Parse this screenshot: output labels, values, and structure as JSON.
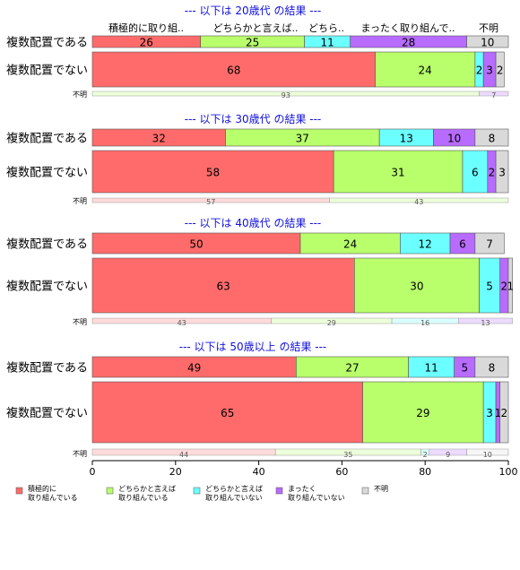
{
  "chart_data": {
    "type": "bar",
    "orientation": "horizontal-stacked-100",
    "xlim": [
      0,
      100
    ],
    "xticks": [
      "0",
      "20",
      "40",
      "60",
      "80",
      "100"
    ],
    "grid": false,
    "legend_position": "bottom-left",
    "colors": [
      "#FF6B6B",
      "#B8FF6B",
      "#6BFFFF",
      "#B86BFF",
      "#D9D9D9"
    ],
    "header_labels": [
      "積極的に取り組..",
      "どちらかと言えば..",
      "どちら..",
      "まったく取り組んで..",
      "不明"
    ],
    "legend": [
      {
        "line1": "積極的に",
        "line2": "取り組んでいる"
      },
      {
        "line1": "どちらかと言えば",
        "line2": "取り組んでいる"
      },
      {
        "line1": "どちらかと言えば",
        "line2": "取り組んでいない"
      },
      {
        "line1": "まったく",
        "line2": "取り組んでいない"
      },
      {
        "line1": "不明",
        "line2": ""
      }
    ],
    "panels": [
      {
        "title": "--- 以下は 20歳代 の結果 ---",
        "rows": [
          {
            "label": "複数配置である",
            "values": [
              26,
              25,
              11,
              28,
              10
            ]
          },
          {
            "label": "複数配置でない",
            "values": [
              68,
              24,
              2,
              3,
              2
            ]
          }
        ],
        "mini": {
          "label": "不明",
          "values": [
            0,
            93,
            0,
            7,
            0
          ]
        }
      },
      {
        "title": "--- 以下は 30歳代 の結果 ---",
        "rows": [
          {
            "label": "複数配置である",
            "values": [
              32,
              37,
              13,
              10,
              8
            ]
          },
          {
            "label": "複数配置でない",
            "values": [
              58,
              31,
              6,
              2,
              3
            ]
          }
        ],
        "mini": {
          "label": "不明",
          "values": [
            57,
            43,
            0,
            0,
            0
          ]
        }
      },
      {
        "title": "--- 以下は 40歳代 の結果 ---",
        "rows": [
          {
            "label": "複数配置である",
            "values": [
              50,
              24,
              12,
              6,
              7
            ]
          },
          {
            "label": "複数配置でない",
            "values": [
              63,
              30,
              5,
              2,
              1
            ]
          }
        ],
        "mini": {
          "label": "不明",
          "values": [
            43,
            29,
            16,
            13,
            0
          ]
        }
      },
      {
        "title": "--- 以下は 50歳以上 の結果 ---",
        "rows": [
          {
            "label": "複数配置である",
            "values": [
              49,
              27,
              11,
              5,
              8
            ]
          },
          {
            "label": "複数配置でない",
            "values": [
              65,
              29,
              3,
              1,
              2
            ]
          }
        ],
        "mini": {
          "label": "不明",
          "values": [
            44,
            35,
            2,
            9,
            10
          ]
        }
      }
    ]
  }
}
